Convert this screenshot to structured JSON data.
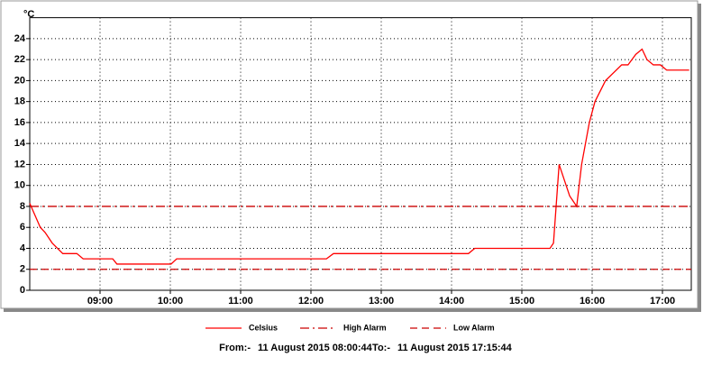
{
  "chart_data": {
    "type": "line",
    "y_unit": "°C",
    "xlim": [
      8,
      17.41
    ],
    "xticks": [
      {
        "value": 9,
        "label": "09:00"
      },
      {
        "value": 10,
        "label": "10:00"
      },
      {
        "value": 11,
        "label": "11:00"
      },
      {
        "value": 12,
        "label": "12:00"
      },
      {
        "value": 13,
        "label": "13:00"
      },
      {
        "value": 14,
        "label": "14:00"
      },
      {
        "value": 15,
        "label": "15:00"
      },
      {
        "value": 16,
        "label": "16:00"
      },
      {
        "value": 17,
        "label": "17:00"
      }
    ],
    "ylim": [
      0,
      26
    ],
    "yticks": [
      0,
      2,
      4,
      6,
      8,
      10,
      12,
      14,
      16,
      18,
      20,
      22,
      24
    ],
    "grid": true,
    "legend": "bottom",
    "series": [
      {
        "name": "Celsius",
        "color": "#ff0000",
        "style": "solid",
        "x": [
          8.0,
          8.15,
          8.22,
          8.32,
          8.47,
          8.67,
          8.76,
          9.18,
          9.24,
          10.01,
          10.09,
          12.22,
          12.32,
          14.24,
          14.33,
          15.4,
          15.45,
          15.53,
          15.68,
          15.78,
          15.85,
          15.96,
          16.04,
          16.19,
          16.42,
          16.51,
          16.62,
          16.71,
          16.78,
          16.87,
          16.97,
          17.06,
          17.38
        ],
        "values": [
          8.3,
          6,
          5.5,
          4.5,
          3.5,
          3.5,
          3,
          3,
          2.5,
          2.5,
          3,
          3,
          3.5,
          3.5,
          4,
          4,
          4.5,
          12,
          9,
          8,
          12,
          16,
          18,
          20,
          21.5,
          21.5,
          22.5,
          23,
          22,
          21.5,
          21.5,
          21,
          21
        ]
      },
      {
        "name": "High Alarm",
        "color": "#cc0000",
        "style": "dashdot",
        "x": [
          8,
          17.41
        ],
        "values": [
          8,
          8
        ]
      },
      {
        "name": "Low Alarm",
        "color": "#cc0000",
        "style": "dashed",
        "x": [
          8,
          17.41
        ],
        "values": [
          2,
          2
        ]
      }
    ],
    "from_label": "From:-",
    "from": "11 August 2015 08:00:44",
    "to_label": "To:-",
    "to": "11 August 2015 17:15:44"
  }
}
